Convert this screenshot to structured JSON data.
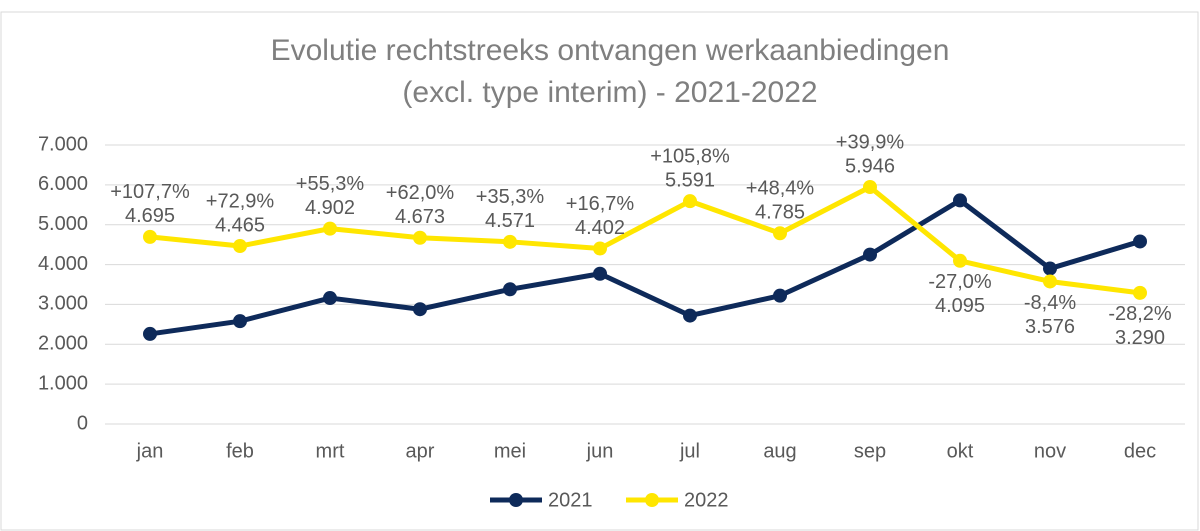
{
  "chart_data": {
    "type": "line",
    "title": [
      "Evolutie rechtstreeks ontvangen werkaanbiedingen",
      "(excl. type interim) - 2021-2022"
    ],
    "categories": [
      "jan",
      "feb",
      "mrt",
      "apr",
      "mei",
      "jun",
      "jul",
      "aug",
      "sep",
      "okt",
      "nov",
      "dec"
    ],
    "series": [
      {
        "name": "2021",
        "color": "#0e2a5a",
        "values": [
          2260,
          2580,
          3160,
          2880,
          3380,
          3770,
          2720,
          3220,
          4250,
          5610,
          3900,
          4580
        ]
      },
      {
        "name": "2022",
        "color": "#ffe600",
        "values": [
          4695,
          4465,
          4902,
          4673,
          4571,
          4402,
          5591,
          4785,
          5946,
          4095,
          3576,
          3290
        ],
        "value_labels": [
          "4.695",
          "4.465",
          "4.902",
          "4.673",
          "4.571",
          "4.402",
          "5.591",
          "4.785",
          "5.946",
          "4.095",
          "3.576",
          "3.290"
        ],
        "change_labels": [
          "+107,7%",
          "+72,9%",
          "+55,3%",
          "+62,0%",
          "+35,3%",
          "+16,7%",
          "+105,8%",
          "+48,4%",
          "+39,9%",
          "-27,0%",
          "-8,4%",
          "-28,2%"
        ]
      }
    ],
    "ylim": [
      0,
      7000
    ],
    "yticks": [
      0,
      {
        "value": 1000,
        "label": "1.000"
      },
      {
        "value": 2000,
        "label": "2.000"
      },
      {
        "value": 3000,
        "label": "3.000"
      },
      {
        "value": 4000,
        "label": "4.000"
      },
      {
        "value": 5000,
        "label": "5.000"
      },
      {
        "value": 6000,
        "label": "6.000"
      },
      {
        "value": 7000,
        "label": "7.000"
      }
    ],
    "grid": true,
    "legend": "bottom"
  }
}
